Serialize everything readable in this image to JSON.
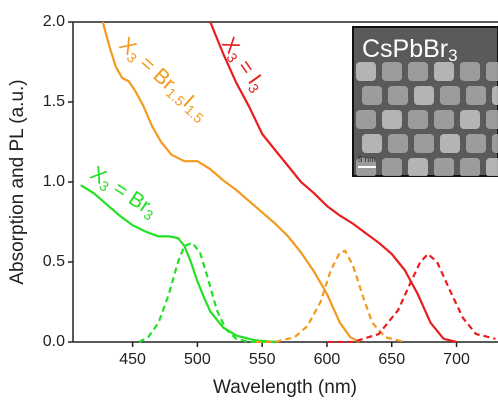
{
  "chart_data": {
    "type": "line",
    "x_label": "Wavelength (nm)",
    "y_label": "Absorption and PL (a.u.)",
    "xlim": [
      404,
      732
    ],
    "ylim": [
      0,
      2
    ],
    "xticks": [
      450,
      500,
      550,
      600,
      650,
      700
    ],
    "yticks": [
      {
        "value": 0,
        "label": "0.0"
      },
      0.5,
      {
        "value": 1,
        "label": "1.0"
      },
      1.5,
      {
        "value": 2,
        "label": "2.0"
      }
    ],
    "series": [
      {
        "color": "#22e022",
        "dash": false,
        "x": [
          410,
          420,
          430,
          440,
          450,
          460,
          470,
          478,
          485,
          490,
          495,
          500,
          505,
          510,
          520,
          530,
          545,
          560
        ],
        "values": [
          0.98,
          0.93,
          0.86,
          0.79,
          0.73,
          0.69,
          0.66,
          0.66,
          0.65,
          0.6,
          0.5,
          0.38,
          0.28,
          0.19,
          0.09,
          0.04,
          0.01,
          0.0
        ]
      },
      {
        "color": "#22e022",
        "dash": true,
        "x": [
          455,
          462,
          470,
          478,
          485,
          490,
          496,
          502,
          508,
          515,
          522,
          530,
          540,
          560
        ],
        "values": [
          0,
          0.03,
          0.12,
          0.3,
          0.5,
          0.6,
          0.62,
          0.56,
          0.4,
          0.2,
          0.08,
          0.02,
          0,
          0
        ]
      },
      {
        "color": "#f39a1e",
        "dash": false,
        "x": [
          427,
          432,
          437,
          442,
          447,
          452,
          458,
          465,
          472,
          480,
          490,
          500,
          510,
          520,
          530,
          540,
          550,
          560,
          570,
          580,
          590,
          600,
          610,
          618,
          625
        ],
        "values": [
          2.0,
          1.85,
          1.72,
          1.65,
          1.63,
          1.57,
          1.48,
          1.35,
          1.25,
          1.17,
          1.13,
          1.13,
          1.08,
          1.01,
          0.95,
          0.88,
          0.81,
          0.74,
          0.66,
          0.56,
          0.44,
          0.3,
          0.12,
          0.03,
          0.0
        ]
      },
      {
        "color": "#f39a1e",
        "dash": true,
        "x": [
          545,
          560,
          575,
          585,
          595,
          603,
          610,
          614,
          620,
          628,
          635,
          645,
          660
        ],
        "values": [
          0,
          0,
          0.03,
          0.1,
          0.25,
          0.45,
          0.56,
          0.57,
          0.48,
          0.28,
          0.12,
          0.03,
          0
        ]
      },
      {
        "color": "#e81e1e",
        "dash": false,
        "x": [
          510,
          520,
          530,
          540,
          550,
          560,
          570,
          580,
          590,
          600,
          610,
          620,
          630,
          640,
          650,
          660,
          670,
          680,
          690,
          700
        ],
        "values": [
          2.0,
          1.8,
          1.62,
          1.47,
          1.3,
          1.2,
          1.1,
          1.0,
          0.93,
          0.85,
          0.79,
          0.74,
          0.68,
          0.62,
          0.55,
          0.45,
          0.3,
          0.12,
          0.02,
          0
        ]
      },
      {
        "color": "#e81e1e",
        "dash": true,
        "x": [
          600,
          620,
          640,
          655,
          665,
          672,
          678,
          685,
          695,
          705,
          715,
          730
        ],
        "values": [
          0,
          0,
          0.05,
          0.2,
          0.38,
          0.5,
          0.55,
          0.5,
          0.32,
          0.15,
          0.05,
          0.02
        ]
      }
    ],
    "annotations": [
      {
        "parts": [
          "X",
          "3",
          " = Br",
          "3"
        ],
        "color": "#22e022"
      },
      {
        "parts": [
          "X",
          "3",
          " = Br",
          "1.5",
          "I",
          "1.5"
        ],
        "color": "#f39a1e"
      },
      {
        "parts": [
          "X",
          "3",
          " = I",
          "3"
        ],
        "color": "#e81e1e"
      }
    ],
    "inset": {
      "title": [
        "CsPbBr",
        "3"
      ],
      "scale_bar": "5 nm"
    }
  }
}
